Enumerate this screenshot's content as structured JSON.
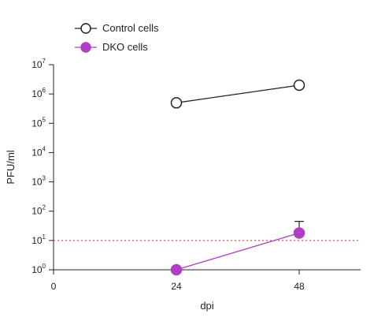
{
  "chart_data": {
    "type": "line",
    "title": "",
    "xlabel": "dpi",
    "ylabel": "PFU/ml",
    "x_ticks": [
      "0",
      "24",
      "48"
    ],
    "y_ticks": [
      {
        "base": "10",
        "exp": "0"
      },
      {
        "base": "10",
        "exp": "1"
      },
      {
        "base": "10",
        "exp": "2"
      },
      {
        "base": "10",
        "exp": "3"
      },
      {
        "base": "10",
        "exp": "4"
      },
      {
        "base": "10",
        "exp": "5"
      },
      {
        "base": "10",
        "exp": "6"
      },
      {
        "base": "10",
        "exp": "7"
      }
    ],
    "xlim": [
      0,
      60
    ],
    "ylim": [
      1,
      10000000
    ],
    "y_scale": "log",
    "grid": false,
    "legend_position": "top-left",
    "detection_limit": {
      "y": 10,
      "color": "#e05050",
      "style": "dotted"
    },
    "series": [
      {
        "name": "Control cells",
        "color": "#222222",
        "marker": "open-circle",
        "x": [
          24,
          48
        ],
        "y": [
          500000,
          2000000
        ]
      },
      {
        "name": "DKO cells",
        "color": "#b03cc8",
        "marker": "filled-circle",
        "x": [
          24,
          48
        ],
        "y": [
          1,
          18
        ],
        "error_upper": [
          null,
          45
        ]
      }
    ]
  }
}
